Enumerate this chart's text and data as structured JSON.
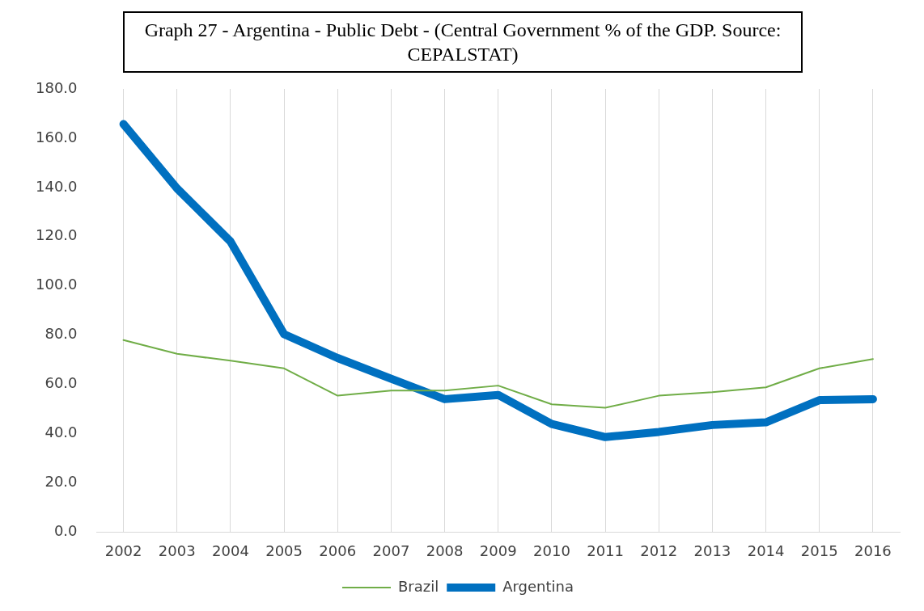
{
  "chart_data": {
    "type": "line",
    "title": "Graph 27 - Argentina - Public Debt - (Central Government % of the GDP. Source: CEPALSTAT)",
    "categories": [
      "2002",
      "2003",
      "2004",
      "2005",
      "2006",
      "2007",
      "2008",
      "2009",
      "2010",
      "2011",
      "2012",
      "2013",
      "2014",
      "2015",
      "2016"
    ],
    "series": [
      {
        "name": "Brazil",
        "color": "#70ad47",
        "values": [
          78.0,
          72.4,
          69.6,
          66.5,
          55.4,
          57.5,
          57.5,
          59.5,
          51.9,
          50.5,
          55.4,
          56.8,
          58.8,
          66.5,
          70.3
        ]
      },
      {
        "name": "Argentina",
        "color": "#0070c0",
        "values": [
          165.7,
          139.6,
          118.0,
          80.4,
          70.7,
          62.3,
          54.0,
          55.7,
          43.9,
          38.6,
          40.7,
          43.5,
          44.6,
          53.6,
          54.0
        ]
      }
    ],
    "ylim": [
      0,
      180
    ],
    "yticks": [
      {
        "value": 0,
        "label": "0.0"
      },
      {
        "value": 20,
        "label": "20.0"
      },
      {
        "value": 40,
        "label": "40.0"
      },
      {
        "value": 60,
        "label": "60.0"
      },
      {
        "value": 80,
        "label": "80.0"
      },
      {
        "value": 100,
        "label": "100.0"
      },
      {
        "value": 120,
        "label": "120.0"
      },
      {
        "value": 140,
        "label": "140.0"
      },
      {
        "value": 160,
        "label": "160.0"
      },
      {
        "value": 180,
        "label": "180.0"
      }
    ],
    "grid": "x",
    "legend": "bottom",
    "marker": "none",
    "line_style": "solid"
  }
}
